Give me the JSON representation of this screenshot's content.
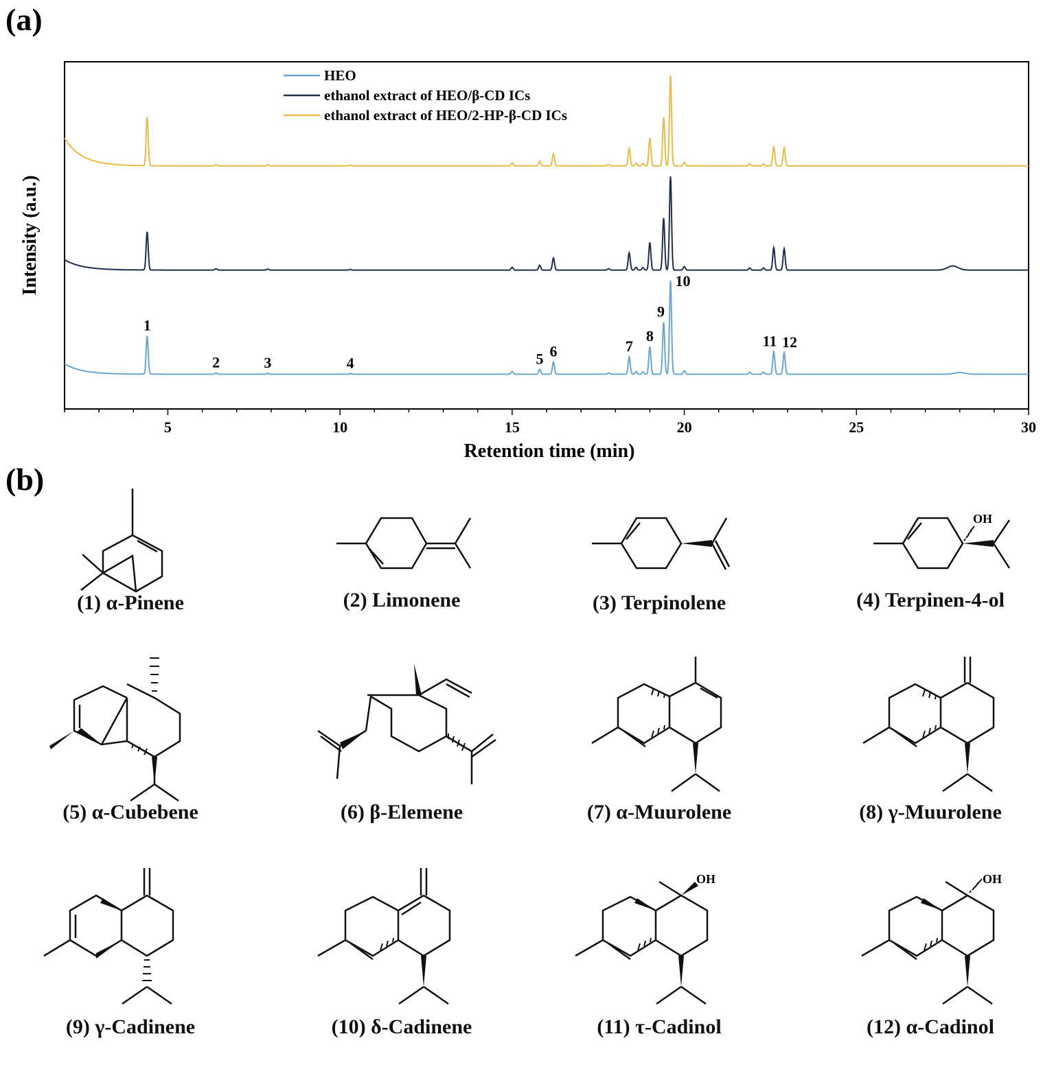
{
  "panels": {
    "a": "(a)",
    "b": "(b)"
  },
  "chart_data": {
    "type": "line",
    "xlabel": "Retention time (min)",
    "ylabel": "Intensity (a.u.)",
    "xlim": [
      2,
      30
    ],
    "xticks": [
      5,
      10,
      15,
      20,
      25,
      30
    ],
    "ylim": [
      0,
      100
    ],
    "legend_position": "top-left",
    "series": [
      {
        "name": "HEO",
        "color": "#6aa6d0",
        "offset": 10,
        "baseline_start": 3,
        "tail": [
          [
            28.0,
            0.5
          ]
        ],
        "peaks": [
          [
            4.4,
            11
          ],
          [
            6.4,
            0.4
          ],
          [
            7.9,
            0.3
          ],
          [
            10.3,
            0.2
          ],
          [
            15.0,
            0.8
          ],
          [
            15.8,
            1.4
          ],
          [
            16.2,
            3.5
          ],
          [
            17.8,
            0.4
          ],
          [
            18.4,
            5.0
          ],
          [
            18.6,
            0.8
          ],
          [
            18.8,
            0.7
          ],
          [
            19.0,
            8.0
          ],
          [
            19.4,
            15
          ],
          [
            19.6,
            27
          ],
          [
            20.0,
            1.0
          ],
          [
            21.9,
            0.6
          ],
          [
            22.3,
            0.6
          ],
          [
            22.6,
            6.5
          ],
          [
            22.9,
            6.2
          ]
        ]
      },
      {
        "name": "ethanol extract of HEO/β-CD ICs",
        "color": "#1f2e4d",
        "offset": 40,
        "baseline_start": 3,
        "tail": [
          [
            27.8,
            1.2
          ]
        ],
        "peaks": [
          [
            4.4,
            11
          ],
          [
            6.4,
            0.4
          ],
          [
            7.9,
            0.3
          ],
          [
            10.3,
            0.2
          ],
          [
            15.0,
            0.8
          ],
          [
            15.8,
            1.4
          ],
          [
            16.2,
            3.5
          ],
          [
            17.8,
            0.4
          ],
          [
            18.4,
            5.0
          ],
          [
            18.6,
            0.8
          ],
          [
            18.8,
            0.7
          ],
          [
            19.0,
            8.0
          ],
          [
            19.4,
            15
          ],
          [
            19.6,
            27
          ],
          [
            20.0,
            1.0
          ],
          [
            21.9,
            0.6
          ],
          [
            22.3,
            0.6
          ],
          [
            22.6,
            6.5
          ],
          [
            22.9,
            6.2
          ]
        ]
      },
      {
        "name": "ethanol extract of HEO/2-HP-β-CD ICs",
        "color": "#e8bb4a",
        "offset": 70,
        "baseline_start": 8,
        "tail": [],
        "peaks": [
          [
            4.4,
            14
          ],
          [
            6.4,
            0.4
          ],
          [
            7.9,
            0.3
          ],
          [
            10.3,
            0.2
          ],
          [
            15.0,
            0.8
          ],
          [
            15.8,
            1.4
          ],
          [
            16.2,
            3.5
          ],
          [
            17.8,
            0.4
          ],
          [
            18.4,
            5.0
          ],
          [
            18.6,
            0.8
          ],
          [
            18.8,
            0.7
          ],
          [
            19.0,
            8.0
          ],
          [
            19.4,
            14
          ],
          [
            19.6,
            26
          ],
          [
            20.0,
            1.0
          ],
          [
            21.9,
            0.6
          ],
          [
            22.3,
            0.6
          ],
          [
            22.6,
            5.5
          ],
          [
            22.9,
            5.2
          ]
        ]
      }
    ],
    "annotations": [
      {
        "text": "1",
        "x": 4.4
      },
      {
        "text": "2",
        "x": 6.4
      },
      {
        "text": "3",
        "x": 7.9
      },
      {
        "text": "4",
        "x": 10.3
      },
      {
        "text": "5",
        "x": 15.8
      },
      {
        "text": "6",
        "x": 16.2
      },
      {
        "text": "7",
        "x": 18.4
      },
      {
        "text": "8",
        "x": 19.0
      },
      {
        "text": "9",
        "x": 19.4
      },
      {
        "text": "10",
        "x": 19.6
      },
      {
        "text": "11",
        "x": 22.6
      },
      {
        "text": "12",
        "x": 22.9
      }
    ]
  },
  "compounds": [
    {
      "label": "(1) α-Pinene"
    },
    {
      "label": "(2) Limonene"
    },
    {
      "label": "(3) Terpinolene"
    },
    {
      "label": "(4) Terpinen-4-ol",
      "oh": "OH"
    },
    {
      "label": "(5) α-Cubebene"
    },
    {
      "label": "(6) β-Elemene"
    },
    {
      "label": "(7) α-Muurolene"
    },
    {
      "label": "(8) γ-Muurolene"
    },
    {
      "label": "(9) γ-Cadinene"
    },
    {
      "label": "(10) δ-Cadinene"
    },
    {
      "label": "(11) τ-Cadinol",
      "oh": "OH"
    },
    {
      "label": "(12) α-Cadinol",
      "oh": "OH"
    }
  ]
}
